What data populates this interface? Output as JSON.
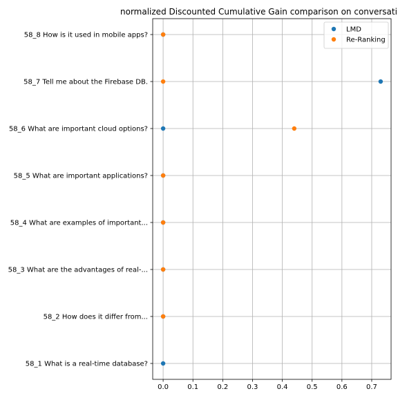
{
  "chart_data": {
    "type": "scatter",
    "title": "normalized Discounted Cumulative Gain comparison on conversati",
    "xlabel": "",
    "ylabel": "",
    "xlim": [
      -0.035,
      0.765
    ],
    "xticks": [
      0.0,
      0.1,
      0.2,
      0.3,
      0.4,
      0.5,
      0.6,
      0.7
    ],
    "xtick_labels": [
      "0.0",
      "0.1",
      "0.2",
      "0.3",
      "0.4",
      "0.5",
      "0.6",
      "0.7"
    ],
    "categories": [
      "58_1 What is a real-time database?",
      "58_2 How does it differ from...",
      "58_3 What are the advantages of real-...",
      "58_4 What are examples of important...",
      "58_5 What are important applications?",
      "58_6 What are important cloud options?",
      "58_7 Tell me about the Firebase DB.",
      "58_8 How is it used in mobile apps?"
    ],
    "grid": true,
    "legend_position": "upper-right",
    "series": [
      {
        "name": "LMD",
        "color": "#1f77b4",
        "values": [
          0.0,
          0.0,
          0.0,
          0.0,
          0.0,
          0.0,
          0.73,
          0.0
        ]
      },
      {
        "name": "Re-Ranking",
        "color": "#ff7f0e",
        "values": [
          null,
          0.0,
          0.0,
          0.0,
          0.0,
          0.44,
          0.0,
          0.0
        ]
      }
    ]
  }
}
